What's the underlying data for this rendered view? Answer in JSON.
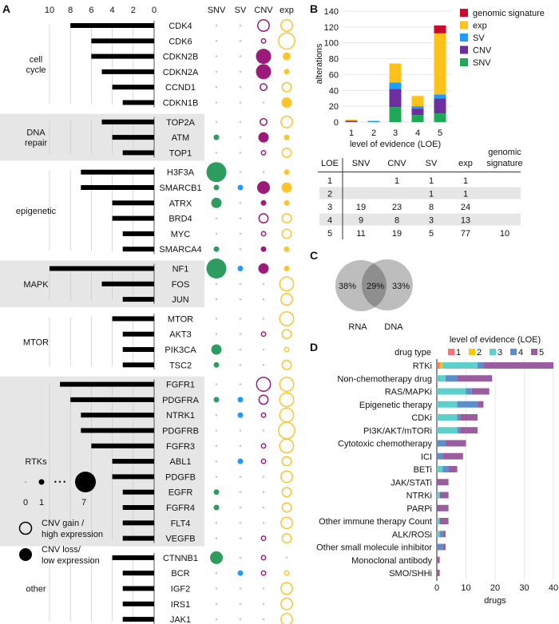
{
  "colors": {
    "snv": "#2f9c5f",
    "sv": "#1e9bff",
    "cnv": "#9b1a7a",
    "exp": "#fcc52e",
    "band": "#e6e6e6",
    "b_snv": "#1fa855",
    "b_cnv": "#6d2f9e",
    "b_sv": "#1e9bff",
    "b_exp": "#ffc21a",
    "b_gen": "#cc0a2f",
    "loe1": "#ff6f6f",
    "loe2": "#ffc800",
    "loe3": "#5ed0cc",
    "loe4": "#5a8fcc",
    "loe5": "#9a5ea0"
  },
  "panelA": {
    "label": "A",
    "axis_ticks": [
      "10",
      "8",
      "6",
      "4",
      "2",
      "0"
    ],
    "columns": [
      "SNV",
      "SV",
      "CNV",
      "exp"
    ],
    "groups": [
      {
        "name_lines": [
          "cell",
          "cycle"
        ],
        "band": false,
        "genes": [
          {
            "gene": "CDK4",
            "count": 8,
            "snv": 0,
            "sv": 0,
            "cnv": 4,
            "cnv_type": "gain",
            "exp": 4,
            "exp_type": "high"
          },
          {
            "gene": "CDK6",
            "count": 6,
            "snv": 0,
            "sv": 0,
            "cnv": 1,
            "cnv_type": "gain",
            "exp": 6,
            "exp_type": "high"
          },
          {
            "gene": "CDKN2B",
            "count": 6,
            "snv": 0,
            "sv": 0,
            "cnv": 5,
            "cnv_type": "loss",
            "exp": 2,
            "exp_type": "low"
          },
          {
            "gene": "CDKN2A",
            "count": 5,
            "snv": 0,
            "sv": 0,
            "cnv": 5,
            "cnv_type": "loss",
            "exp": 1,
            "exp_type": "low"
          },
          {
            "gene": "CCND1",
            "count": 4,
            "snv": 0,
            "sv": 0,
            "cnv": 2,
            "cnv_type": "gain",
            "exp": 3,
            "exp_type": "high"
          },
          {
            "gene": "CDKN1B",
            "count": 3,
            "snv": 0,
            "sv": 0,
            "cnv": 0,
            "cnv_type": "gain",
            "exp": 3,
            "exp_type": "low"
          }
        ]
      },
      {
        "name_lines": [
          "DNA",
          "repair"
        ],
        "band": true,
        "genes": [
          {
            "gene": "TOP2A",
            "count": 5,
            "snv": 0,
            "sv": 0,
            "cnv": 2,
            "cnv_type": "gain",
            "exp": 4,
            "exp_type": "high"
          },
          {
            "gene": "ATM",
            "count": 4,
            "snv": 1,
            "sv": 0,
            "cnv": 3,
            "cnv_type": "loss",
            "exp": 1,
            "exp_type": "low"
          },
          {
            "gene": "TOP1",
            "count": 3,
            "snv": 0,
            "sv": 0,
            "cnv": 1,
            "cnv_type": "gain",
            "exp": 3,
            "exp_type": "high"
          }
        ]
      },
      {
        "name_lines": [
          "epigenetic"
        ],
        "band": false,
        "genes": [
          {
            "gene": "H3F3A",
            "count": 7,
            "snv": 7,
            "sv": 0,
            "cnv": 0,
            "cnv_type": "gain",
            "exp": 1,
            "exp_type": "low"
          },
          {
            "gene": "SMARCB1",
            "count": 7,
            "snv": 1,
            "sv": 1,
            "cnv": 4,
            "cnv_type": "loss",
            "exp": 3,
            "exp_type": "low"
          },
          {
            "gene": "ATRX",
            "count": 4,
            "snv": 3,
            "sv": 0,
            "cnv": 1,
            "cnv_type": "loss",
            "exp": 1,
            "exp_type": "low"
          },
          {
            "gene": "BRD4",
            "count": 4,
            "snv": 0,
            "sv": 0,
            "cnv": 3,
            "cnv_type": "gain",
            "exp": 3,
            "exp_type": "high"
          },
          {
            "gene": "MYC",
            "count": 3,
            "snv": 0,
            "sv": 0,
            "cnv": 1,
            "cnv_type": "gain",
            "exp": 3,
            "exp_type": "high"
          },
          {
            "gene": "SMARCA4",
            "count": 3,
            "snv": 1,
            "sv": 0,
            "cnv": 1,
            "cnv_type": "loss",
            "exp": 1,
            "exp_type": "low"
          }
        ]
      },
      {
        "name_lines": [
          "MAPK"
        ],
        "band": true,
        "genes": [
          {
            "gene": "NF1",
            "count": 10,
            "snv": 7,
            "sv": 1,
            "cnv": 3,
            "cnv_type": "loss",
            "exp": 1,
            "exp_type": "low"
          },
          {
            "gene": "FOS",
            "count": 5,
            "snv": 0,
            "sv": 0,
            "cnv": 0,
            "cnv_type": "gain",
            "exp": 5,
            "exp_type": "high"
          },
          {
            "gene": "JUN",
            "count": 3,
            "snv": 0,
            "sv": 0,
            "cnv": 0,
            "cnv_type": "gain",
            "exp": 4,
            "exp_type": "high"
          }
        ]
      },
      {
        "name_lines": [
          "MTOR"
        ],
        "band": false,
        "genes": [
          {
            "gene": "MTOR",
            "count": 4,
            "snv": 0,
            "sv": 0,
            "cnv": 0,
            "cnv_type": "gain",
            "exp": 5,
            "exp_type": "high"
          },
          {
            "gene": "AKT3",
            "count": 3,
            "snv": 0,
            "sv": 0,
            "cnv": 1,
            "cnv_type": "gain",
            "exp": 3,
            "exp_type": "high"
          },
          {
            "gene": "PIK3CA",
            "count": 3,
            "snv": 3,
            "sv": 0,
            "cnv": 0,
            "cnv_type": "gain",
            "exp": 1,
            "exp_type": "high"
          },
          {
            "gene": "TSC2",
            "count": 3,
            "snv": 1,
            "sv": 0,
            "cnv": 0,
            "cnv_type": "gain",
            "exp": 3,
            "exp_type": "high"
          }
        ]
      },
      {
        "name_lines": [
          "RTKs"
        ],
        "band": true,
        "genes": [
          {
            "gene": "FGFR1",
            "count": 9,
            "snv": 0,
            "sv": 0,
            "cnv": 5,
            "cnv_type": "gain",
            "exp": 5,
            "exp_type": "high"
          },
          {
            "gene": "PDGFRA",
            "count": 8,
            "snv": 1,
            "sv": 1,
            "cnv": 3,
            "cnv_type": "gain",
            "exp": 5,
            "exp_type": "high"
          },
          {
            "gene": "NTRK1",
            "count": 7,
            "snv": 0,
            "sv": 1,
            "cnv": 1,
            "cnv_type": "gain",
            "exp": 5,
            "exp_type": "high"
          },
          {
            "gene": "PDGFRB",
            "count": 7,
            "snv": 0,
            "sv": 0,
            "cnv": 0,
            "cnv_type": "gain",
            "exp": 6,
            "exp_type": "high"
          },
          {
            "gene": "FGFR3",
            "count": 6,
            "snv": 0,
            "sv": 0,
            "cnv": 1,
            "cnv_type": "gain",
            "exp": 5,
            "exp_type": "high"
          },
          {
            "gene": "ABL1",
            "count": 4,
            "snv": 0,
            "sv": 1,
            "cnv": 1,
            "cnv_type": "gain",
            "exp": 3,
            "exp_type": "high"
          },
          {
            "gene": "PDGFB",
            "count": 4,
            "snv": 0,
            "sv": 0,
            "cnv": 0,
            "cnv_type": "gain",
            "exp": 4,
            "exp_type": "high"
          },
          {
            "gene": "EGFR",
            "count": 3,
            "snv": 1,
            "sv": 0,
            "cnv": 0,
            "cnv_type": "gain",
            "exp": 3,
            "exp_type": "high"
          },
          {
            "gene": "FGFR4",
            "count": 3,
            "snv": 1,
            "sv": 0,
            "cnv": 0,
            "cnv_type": "gain",
            "exp": 3,
            "exp_type": "high"
          },
          {
            "gene": "FLT4",
            "count": 3,
            "snv": 0,
            "sv": 0,
            "cnv": 0,
            "cnv_type": "gain",
            "exp": 4,
            "exp_type": "high"
          },
          {
            "gene": "VEGFB",
            "count": 3,
            "snv": 0,
            "sv": 0,
            "cnv": 1,
            "cnv_type": "gain",
            "exp": 3,
            "exp_type": "high"
          }
        ]
      },
      {
        "name_lines": [
          "other"
        ],
        "band": false,
        "genes": [
          {
            "gene": "CTNNB1",
            "count": 4,
            "snv": 4,
            "sv": 0,
            "cnv": 1,
            "cnv_type": "gain",
            "exp": 0,
            "exp_type": "high"
          },
          {
            "gene": "BCR",
            "count": 3,
            "snv": 0,
            "sv": 1,
            "cnv": 1,
            "cnv_type": "gain",
            "exp": 1,
            "exp_type": "high"
          },
          {
            "gene": "IGF2",
            "count": 3,
            "snv": 0,
            "sv": 0,
            "cnv": 0,
            "cnv_type": "gain",
            "exp": 4,
            "exp_type": "high"
          },
          {
            "gene": "IRS1",
            "count": 3,
            "snv": 0,
            "sv": 0,
            "cnv": 0,
            "cnv_type": "gain",
            "exp": 4,
            "exp_type": "high"
          },
          {
            "gene": "JAK1",
            "count": 3,
            "snv": 0,
            "sv": 0,
            "cnv": 0,
            "cnv_type": "gain",
            "exp": 4,
            "exp_type": "high"
          }
        ]
      }
    ],
    "legend": {
      "size_labels": [
        "0",
        "1",
        "7"
      ],
      "ellipsis": "• • •",
      "gain_lines": [
        "CNV gain /",
        "high expression"
      ],
      "loss_lines": [
        "CNV loss/",
        "low expression"
      ]
    }
  },
  "chart_data": [
    {
      "panel": "B",
      "type": "bar",
      "stacked": true,
      "categories": [
        "1",
        "2",
        "3",
        "4",
        "5"
      ],
      "series": [
        {
          "name": "SNV",
          "values": [
            0,
            0,
            19,
            9,
            11
          ]
        },
        {
          "name": "CNV",
          "values": [
            1,
            0,
            23,
            8,
            19
          ]
        },
        {
          "name": "SV",
          "values": [
            1,
            1,
            8,
            3,
            5
          ]
        },
        {
          "name": "exp",
          "values": [
            1,
            1,
            24,
            13,
            77
          ]
        },
        {
          "name": "genomic signature",
          "values": [
            0,
            0,
            0,
            0,
            10
          ]
        }
      ],
      "legend_order": [
        "genomic signature",
        "exp",
        "SV",
        "CNV",
        "SNV"
      ],
      "xlabel": "level of evidence (LOE)",
      "ylabel": "alterations",
      "ylim": [
        0,
        140
      ],
      "yticks": [
        "0",
        "20",
        "40",
        "60",
        "80",
        "100",
        "120",
        "140"
      ],
      "grid": true,
      "legend": "top-right"
    },
    {
      "panel": "D",
      "type": "bar",
      "stacked": true,
      "orientation": "horizontal",
      "categories": [
        "RTKi",
        "Non-chemotherapy drug",
        "RAS/MAPKi",
        "Epigenetic therapy",
        "CDKi",
        "PI3K/AKT/mTORi",
        "Cytotoxic chemotherapy",
        "ICI",
        "BETi",
        "JAK/STATi",
        "NTRKi",
        "PARPi",
        "Other immune therapy Count",
        "ALK/ROSi",
        "Other small molecule inhibitor",
        "Monoclonal antibody",
        "SMO/SHHi"
      ],
      "series": [
        {
          "name": "1",
          "values": [
            1,
            0,
            0,
            0,
            0,
            0,
            0,
            0,
            0,
            0,
            0,
            0,
            0,
            0,
            0,
            0,
            0
          ]
        },
        {
          "name": "2",
          "values": [
            1,
            0,
            0,
            0,
            0,
            0,
            0,
            0,
            0,
            0,
            0,
            0,
            0,
            0,
            0,
            0,
            0
          ]
        },
        {
          "name": "3",
          "values": [
            12,
            3,
            10,
            7,
            7,
            7,
            0,
            0,
            2,
            0,
            1,
            0,
            1,
            1,
            0,
            0,
            0
          ]
        },
        {
          "name": "4",
          "values": [
            2,
            4,
            2,
            7,
            1,
            1,
            3,
            2,
            2,
            0,
            0,
            0,
            0,
            1,
            2,
            0,
            0
          ]
        },
        {
          "name": "5",
          "values": [
            24,
            12,
            6,
            2,
            6,
            6,
            7,
            7,
            3,
            4,
            3,
            4,
            3,
            1,
            1,
            1,
            1
          ]
        }
      ],
      "legend_title": "level of evidence (LOE)",
      "ylabel": "drug type",
      "xlabel": "drugs",
      "xlim": [
        0,
        40
      ],
      "xticks": [
        "0",
        "10",
        "20",
        "30",
        "40"
      ],
      "grid": true,
      "legend": "top"
    }
  ],
  "panelB": {
    "label": "B",
    "table": {
      "headers": [
        "LOE",
        "SNV",
        "CNV",
        "SV",
        "exp",
        "genomic",
        "signature"
      ],
      "rows": [
        [
          "1",
          "",
          "1",
          "1",
          "1",
          ""
        ],
        [
          "2",
          "",
          "",
          "1",
          "1",
          ""
        ],
        [
          "3",
          "19",
          "23",
          "8",
          "24",
          ""
        ],
        [
          "4",
          "9",
          "8",
          "3",
          "13",
          ""
        ],
        [
          "5",
          "11",
          "19",
          "5",
          "77",
          "10"
        ]
      ]
    }
  },
  "panelC": {
    "label": "C",
    "rna_only": "38%",
    "overlap": "29%",
    "dna_only": "33%",
    "left_label": "RNA",
    "right_label": "DNA"
  },
  "panelD": {
    "label": "D"
  }
}
